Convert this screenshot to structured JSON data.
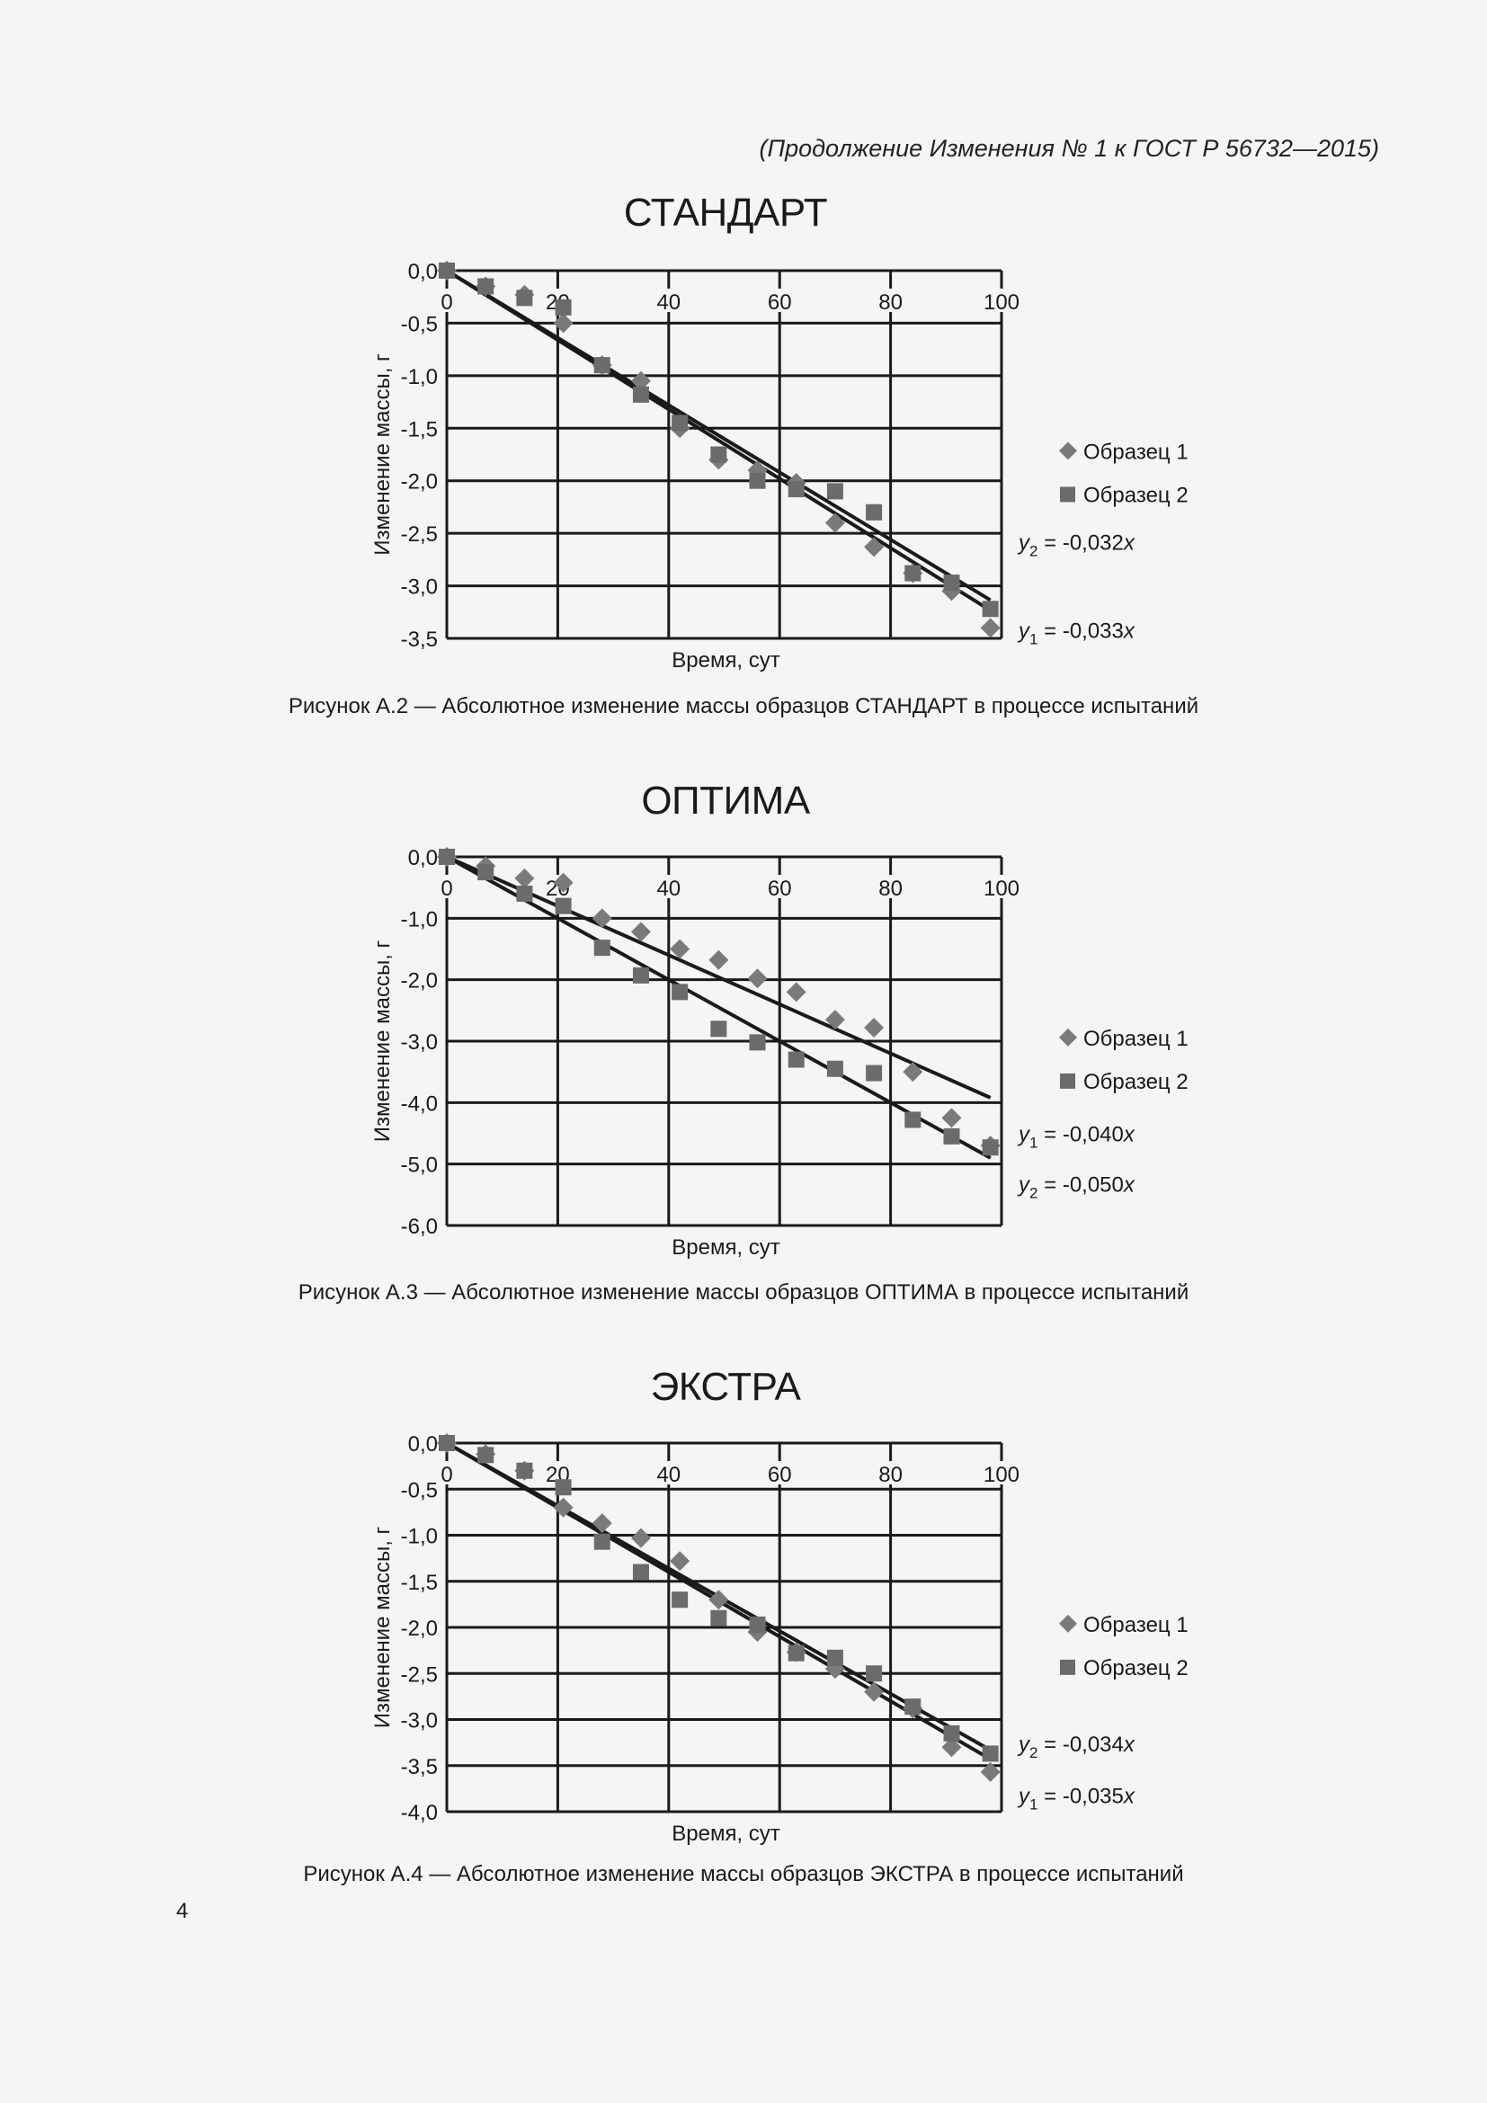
{
  "header": {
    "continuation": "(Продолжение Изменения № 1 к ГОСТ Р 56732—2015)"
  },
  "page_number": "4",
  "figures": [
    {
      "title": "СТАНДАРТ",
      "caption": "Рисунок А.2 — Абсолютное изменение массы образцов СТАНДАРТ в процессе испытаний"
    },
    {
      "title": "ОПТИМА",
      "caption": "Рисунок А.3 — Абсолютное изменение массы образцов ОПТИМА в процессе испытаний"
    },
    {
      "title": "ЭКСТРА",
      "caption": "Рисунок А.4 — Абсолютное изменение массы образцов ЭКСТРА в процессе испытаний"
    }
  ],
  "colors": {
    "marker": "#6b6b6b",
    "line": "#1a1a1a",
    "grid": "#1a1a1a",
    "background": "#f5f5f5"
  },
  "chart_data": [
    {
      "type": "scatter",
      "title": "СТАНДАРТ",
      "xlabel": "Время, сут",
      "ylabel": "Изменение массы, г",
      "xlim": [
        0,
        100
      ],
      "ylim": [
        -3.5,
        0.0
      ],
      "xticks": [
        "0",
        "20",
        "40",
        "60",
        "80",
        "100"
      ],
      "yticks": [
        "0,0",
        "-0,5",
        "-1,0",
        "-1,5",
        "-2,0",
        "-2,5",
        "-3,0",
        "-3,5"
      ],
      "ytick_values": [
        0,
        -0.5,
        -1.0,
        -1.5,
        -2.0,
        -2.5,
        -3.0,
        -3.5
      ],
      "grid": true,
      "legend_position": "right",
      "x": [
        0,
        7,
        14,
        21,
        28,
        35,
        42,
        49,
        56,
        63,
        70,
        77,
        84,
        91,
        98
      ],
      "series": [
        {
          "name": "Образец 1",
          "marker": "diamond",
          "values": [
            0,
            -0.15,
            -0.23,
            -0.5,
            -0.9,
            -1.05,
            -1.5,
            -1.8,
            -1.9,
            -2.02,
            -2.4,
            -2.63,
            -2.88,
            -3.05,
            -3.4
          ]
        },
        {
          "name": "Образец 2",
          "marker": "square",
          "values": [
            0,
            -0.15,
            -0.26,
            -0.35,
            -0.9,
            -1.18,
            -1.45,
            -1.75,
            -2.0,
            -2.08,
            -2.1,
            -2.3,
            -2.88,
            -2.97,
            -3.22
          ]
        }
      ],
      "trendlines": [
        {
          "label": "y₂ = -0,032x",
          "slope": -0.032,
          "label_y": -2.58
        },
        {
          "label": "y₁ = -0,033x",
          "slope": -0.033,
          "label_y": -3.42
        }
      ]
    },
    {
      "type": "scatter",
      "title": "ОПТИМА",
      "xlabel": "Время, сут",
      "ylabel": "Изменение массы, г",
      "xlim": [
        0,
        100
      ],
      "ylim": [
        -6.0,
        0.0
      ],
      "xticks": [
        "0",
        "20",
        "40",
        "60",
        "80",
        "100"
      ],
      "yticks": [
        "0,0",
        "-1,0",
        "-2,0",
        "-3,0",
        "-4,0",
        "-5,0",
        "-6,0"
      ],
      "ytick_values": [
        0,
        -1,
        -2,
        -3,
        -4,
        -5,
        -6
      ],
      "grid": true,
      "legend_position": "right",
      "x": [
        0,
        7,
        14,
        21,
        28,
        35,
        42,
        49,
        56,
        63,
        70,
        77,
        84,
        91,
        98
      ],
      "series": [
        {
          "name": "Образец 1",
          "marker": "diamond",
          "values": [
            0,
            -0.15,
            -0.35,
            -0.42,
            -1.0,
            -1.22,
            -1.5,
            -1.68,
            -1.98,
            -2.2,
            -2.65,
            -2.78,
            -3.5,
            -4.25,
            -4.7
          ]
        },
        {
          "name": "Образец 2",
          "marker": "square",
          "values": [
            0,
            -0.25,
            -0.6,
            -0.8,
            -1.48,
            -1.93,
            -2.2,
            -2.8,
            -3.02,
            -3.3,
            -3.45,
            -3.52,
            -4.28,
            -4.55,
            -4.73
          ]
        }
      ],
      "trendlines": [
        {
          "label": "y₁ = -0,040x",
          "slope": -0.04,
          "label_y": -4.5
        },
        {
          "label": "y₂ = -0,050x",
          "slope": -0.05,
          "label_y": -5.32
        }
      ]
    },
    {
      "type": "scatter",
      "title": "ЭКСТРА",
      "xlabel": "Время, сут",
      "ylabel": "Изменение массы, г",
      "xlim": [
        0,
        100
      ],
      "ylim": [
        -4.0,
        0.0
      ],
      "xticks": [
        "0",
        "20",
        "40",
        "60",
        "80",
        "100"
      ],
      "yticks": [
        "0,0",
        "-0,5",
        "-1,0",
        "-1,5",
        "-2,0",
        "-2,5",
        "-3,0",
        "-3,5",
        "-4,0"
      ],
      "ytick_values": [
        0,
        -0.5,
        -1.0,
        -1.5,
        -2.0,
        -2.5,
        -3.0,
        -3.5,
        -4.0
      ],
      "grid": true,
      "legend_position": "right",
      "x": [
        0,
        7,
        14,
        21,
        28,
        35,
        42,
        49,
        56,
        63,
        70,
        77,
        84,
        91,
        98
      ],
      "series": [
        {
          "name": "Образец 1",
          "marker": "diamond",
          "values": [
            0,
            -0.12,
            -0.3,
            -0.7,
            -0.87,
            -1.03,
            -1.28,
            -1.7,
            -2.05,
            -2.27,
            -2.45,
            -2.7,
            -2.88,
            -3.3,
            -3.57
          ]
        },
        {
          "name": "Образец 2",
          "marker": "square",
          "values": [
            0,
            -0.13,
            -0.3,
            -0.48,
            -1.07,
            -1.4,
            -1.7,
            -1.9,
            -1.97,
            -2.28,
            -2.33,
            -2.5,
            -2.86,
            -3.15,
            -3.37
          ]
        }
      ],
      "trendlines": [
        {
          "label": "y₂ = -0,034x",
          "slope": -0.034,
          "label_y": -3.26
        },
        {
          "label": "y₁ = -0,035x",
          "slope": -0.035,
          "label_y": -3.82
        }
      ]
    }
  ]
}
